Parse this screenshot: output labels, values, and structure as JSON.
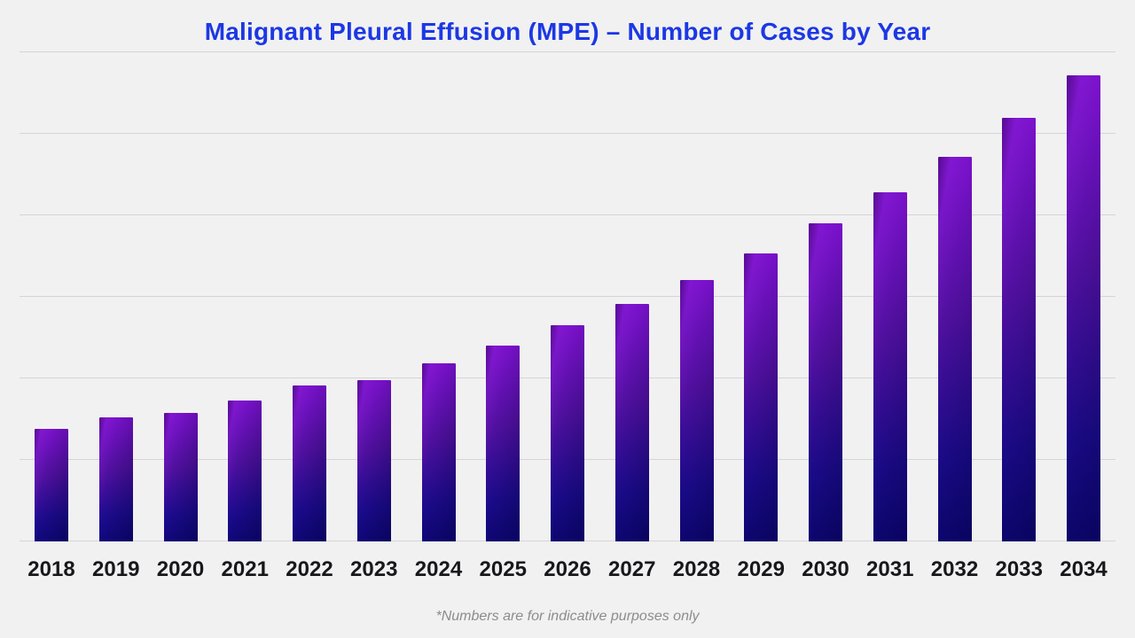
{
  "title": "Malignant Pleural Effusion (MPE) – Number of Cases by Year",
  "footnote": "*Numbers are for indicative purposes only",
  "colors": {
    "background": "#f1f1f2",
    "title": "#1c38e4",
    "gridline": "#d5d5d8",
    "axis_label": "#18181b",
    "footnote": "#8c8c8c",
    "bar_gradient_top": "#7b11cc",
    "bar_gradient_bottom": "#0e0678"
  },
  "chart_data": {
    "type": "bar",
    "title": "Malignant Pleural Effusion (MPE) – Number of Cases by Year",
    "categories": [
      "2018",
      "2019",
      "2020",
      "2021",
      "2022",
      "2023",
      "2024",
      "2025",
      "2026",
      "2027",
      "2028",
      "2029",
      "2030",
      "2031",
      "2032",
      "2033",
      "2034"
    ],
    "values": [
      1380,
      1520,
      1580,
      1730,
      1910,
      1980,
      2190,
      2400,
      2650,
      2910,
      3210,
      3530,
      3900,
      4280,
      4720,
      5200,
      5720
    ],
    "xlabel": "",
    "ylabel": "",
    "ylim": [
      0,
      6000
    ],
    "gridline_count": 7,
    "gridline_interval": 1000,
    "y_axis_tick_labels_visible": false,
    "legend_position": "none",
    "bar_color_style": "gradient purple-to-navy cylinder"
  }
}
